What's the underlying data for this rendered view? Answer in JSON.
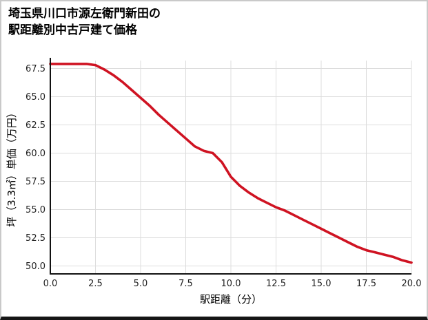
{
  "page": {
    "title_line1": "埼玉県川口市源左衛門新田の",
    "title_line2": "駅距離別中古戸建て価格"
  },
  "chart_data": {
    "type": "line",
    "title": "埼玉県川口市源左衛門新田の駅距離別中古戸建て価格",
    "xlabel": "駅距離（分）",
    "ylabel": "坪（3.3㎡）単価（万円）",
    "xlim": [
      0,
      20
    ],
    "ylim": [
      49.3,
      68.2
    ],
    "x_ticks": [
      0.0,
      2.5,
      5.0,
      7.5,
      10.0,
      12.5,
      15.0,
      17.5,
      20.0
    ],
    "y_ticks": [
      50.0,
      52.5,
      55.0,
      57.5,
      60.0,
      62.5,
      65.0,
      67.5
    ],
    "grid": true,
    "grid_color": "#dcdcdc",
    "spine_color": "#111111",
    "tick_label_color": "#222222",
    "line_color": "#cf1322",
    "series": [
      {
        "name": "坪（3.3㎡）単価（万円）",
        "x": [
          0,
          0.5,
          1,
          1.5,
          2,
          2.5,
          3,
          3.5,
          4,
          4.5,
          5,
          5.5,
          6,
          6.5,
          7,
          7.5,
          8,
          8.5,
          9,
          9.5,
          10,
          10.5,
          11,
          11.5,
          12,
          12.5,
          13,
          13.5,
          14,
          14.5,
          15,
          15.5,
          16,
          16.5,
          17,
          17.5,
          18,
          18.5,
          19,
          19.5,
          20
        ],
        "y": [
          67.9,
          67.9,
          67.9,
          67.9,
          67.9,
          67.8,
          67.4,
          66.9,
          66.3,
          65.6,
          64.9,
          64.2,
          63.4,
          62.7,
          62.0,
          61.3,
          60.6,
          60.2,
          60.0,
          59.2,
          57.9,
          57.1,
          56.5,
          56.0,
          55.6,
          55.2,
          54.9,
          54.5,
          54.1,
          53.7,
          53.3,
          52.9,
          52.5,
          52.1,
          51.7,
          51.4,
          51.2,
          51.0,
          50.8,
          50.5,
          50.3
        ]
      }
    ]
  }
}
